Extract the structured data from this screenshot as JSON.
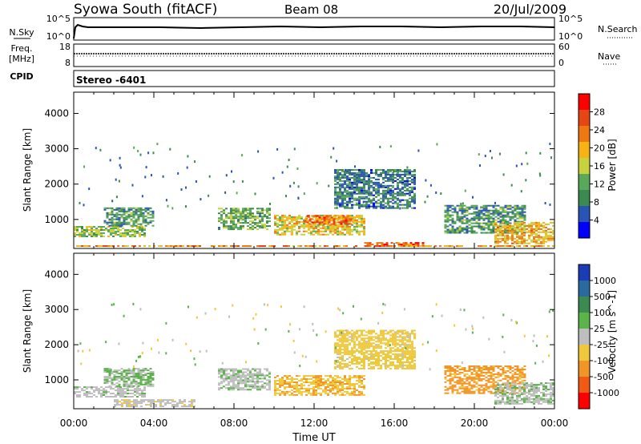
{
  "header": {
    "title": "Syowa South (fitACF)",
    "beam": "Beam 08",
    "date": "20/Jul/2009"
  },
  "noise_panel": {
    "left_label": "N.Sky",
    "left_ticks": [
      "10^5",
      "10^0"
    ],
    "right_label": "N.Search",
    "right_ticks": [
      "10^5",
      "10^0"
    ]
  },
  "freq_panel": {
    "left_label_1": "Freq.",
    "left_label_2": "[MHz]",
    "left_ticks": [
      "18",
      "8"
    ],
    "right_label": "Nave",
    "right_ticks": [
      "60",
      "0"
    ]
  },
  "cpid_panel": {
    "label": "CPID",
    "value": "Stereo -6401"
  },
  "xaxis": {
    "title": "Time UT",
    "ticks": [
      "00:00",
      "04:00",
      "08:00",
      "12:00",
      "16:00",
      "20:00",
      "00:00"
    ]
  },
  "power_panel": {
    "ylabel": "Slant Range [km]",
    "yticks": [
      "4000",
      "3000",
      "2000",
      "1000"
    ],
    "colorbar_label": "Power [dB]",
    "colorbar_ticks": [
      "28",
      "24",
      "20",
      "16",
      "12",
      "8",
      "4"
    ]
  },
  "velocity_panel": {
    "ylabel": "Slant Range [km]",
    "yticks": [
      "4000",
      "3000",
      "2000",
      "1000"
    ],
    "colorbar_label": "Velocity [m s^-1]",
    "colorbar_ticks": [
      "1000",
      "500",
      "100",
      "25",
      "-25",
      "-100",
      "-500",
      "-1000"
    ]
  },
  "colors": {
    "power_scale": [
      "#0000ff",
      "#2a54b4",
      "#3c8a50",
      "#5aa85a",
      "#c8d23c",
      "#f5b414",
      "#f07814",
      "#e64614",
      "#ff0000"
    ],
    "velocity_scale": [
      "#1a3cb4",
      "#2a6aa0",
      "#3c8a50",
      "#5ab44a",
      "#bebebe",
      "#f0c83c",
      "#f09628",
      "#f05a14",
      "#ff0000"
    ]
  },
  "chart_data": [
    {
      "type": "heatmap",
      "title": "Power",
      "x_range_hours": [
        0,
        24
      ],
      "y_range_km": [
        180,
        4600
      ],
      "value_label": "Power [dB]",
      "value_range": [
        0,
        32
      ],
      "regions": [
        {
          "t0": 0.0,
          "t1": 3.6,
          "r0": 500,
          "r1": 800,
          "value": 14
        },
        {
          "t0": 1.5,
          "t1": 4.0,
          "r0": 800,
          "r1": 1300,
          "value": 10
        },
        {
          "t0": 7.2,
          "t1": 9.8,
          "r0": 700,
          "r1": 1300,
          "value": 12
        },
        {
          "t0": 10.0,
          "t1": 14.5,
          "r0": 550,
          "r1": 1100,
          "value": 18
        },
        {
          "t0": 11.5,
          "t1": 14.0,
          "r0": 850,
          "r1": 1100,
          "value": 24
        },
        {
          "t0": 13.0,
          "t1": 17.0,
          "r0": 1300,
          "r1": 2400,
          "value": 8
        },
        {
          "t0": 14.5,
          "t1": 17.5,
          "r0": 180,
          "r1": 350,
          "value": 26
        },
        {
          "t0": 18.5,
          "t1": 22.5,
          "r0": 600,
          "r1": 1400,
          "value": 10
        },
        {
          "t0": 21.0,
          "t1": 24.0,
          "r0": 300,
          "r1": 900,
          "value": 20
        },
        {
          "t0": 0.0,
          "t1": 24.0,
          "r0": 180,
          "r1": 260,
          "value": 22
        }
      ]
    },
    {
      "type": "heatmap",
      "title": "Velocity",
      "x_range_hours": [
        0,
        24
      ],
      "y_range_km": [
        180,
        4600
      ],
      "value_label": "Velocity [m s^-1]",
      "value_range": [
        -1000,
        1000
      ],
      "regions": [
        {
          "t0": 0.0,
          "t1": 3.6,
          "r0": 500,
          "r1": 800,
          "value": 40
        },
        {
          "t0": 1.5,
          "t1": 4.0,
          "r0": 800,
          "r1": 1300,
          "value": 120
        },
        {
          "t0": 2.0,
          "t1": 6.0,
          "r0": 180,
          "r1": 450,
          "value": -60
        },
        {
          "t0": 7.2,
          "t1": 9.8,
          "r0": 700,
          "r1": 1300,
          "value": 60
        },
        {
          "t0": 10.0,
          "t1": 14.5,
          "r0": 550,
          "r1": 1100,
          "value": -300
        },
        {
          "t0": 13.0,
          "t1": 17.0,
          "r0": 1300,
          "r1": 2400,
          "value": -200
        },
        {
          "t0": 18.5,
          "t1": 22.5,
          "r0": 600,
          "r1": 1400,
          "value": -400
        },
        {
          "t0": 21.0,
          "t1": 24.0,
          "r0": 300,
          "r1": 900,
          "value": 80
        }
      ]
    }
  ]
}
